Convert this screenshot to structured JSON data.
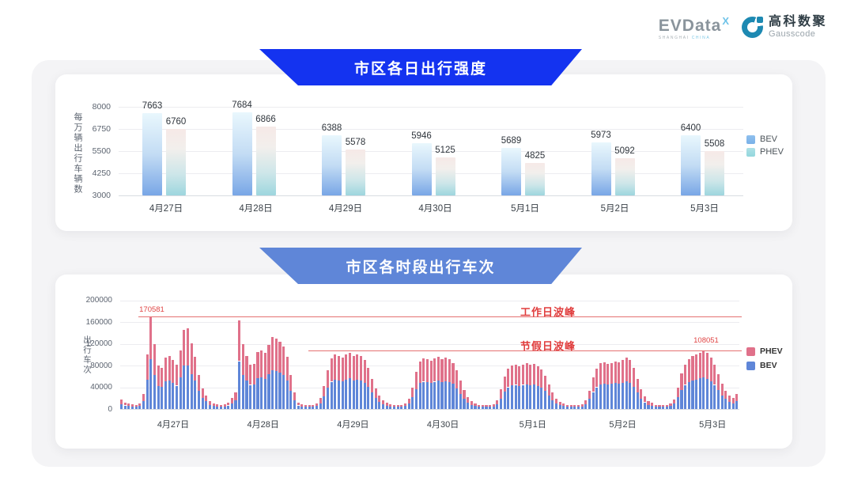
{
  "logo": {
    "evdata_text": "EVData",
    "evdata_sup": "X",
    "evdata_sub_left": "SHANGHAI",
    "evdata_sub_right": "CHINA",
    "gauss_cn": "高科数聚",
    "gauss_en": "Gausscode"
  },
  "banners": [
    {
      "title": "市区各日出行强度"
    },
    {
      "title": "市区各时段出行车次"
    }
  ],
  "colors": {
    "banner_blue": "#1433f0",
    "legend_bev_top": "#79b1e8",
    "legend_phev_top": "#93d7dd",
    "bev_bottom_chart": "#5f86d8",
    "phev_bottom_chart": "#e0718a",
    "annotation_red": "#e03c3c",
    "annotation_line_red": "#e57272"
  },
  "chart_data": [
    {
      "type": "bar",
      "title": "市区各日出行强度",
      "ylabel": "每万辆出行车辆数",
      "categories": [
        "4月27日",
        "4月28日",
        "4月29日",
        "4月30日",
        "5月1日",
        "5月2日",
        "5月3日"
      ],
      "series": [
        {
          "name": "BEV",
          "values": [
            7663,
            7684,
            6388,
            5946,
            5689,
            5973,
            6400
          ]
        },
        {
          "name": "PHEV",
          "values": [
            6760,
            6866,
            5578,
            5125,
            4825,
            5092,
            5508
          ]
        }
      ],
      "ylim": [
        3000,
        8000
      ],
      "yticks": [
        3000,
        4250,
        5500,
        6750,
        8000
      ],
      "grid": true,
      "legend_position": "right",
      "legend": [
        "BEV",
        "PHEV"
      ]
    },
    {
      "type": "bar",
      "stacked": true,
      "title": "市区各时段出行车次",
      "ylabel": "出行车次",
      "categories": [
        "4月27日",
        "4月28日",
        "4月29日",
        "4月30日",
        "5月1日",
        "5月2日",
        "5月3日"
      ],
      "hours_per_day": 24,
      "ylim": [
        0,
        200000
      ],
      "yticks": [
        0,
        40000,
        80000,
        120000,
        160000,
        200000
      ],
      "grid": true,
      "legend_position": "right",
      "legend": [
        "PHEV",
        "BEV"
      ],
      "annotations": {
        "workday_peak": {
          "label": "工作日波峰",
          "value": 170581,
          "value_label": "170581"
        },
        "holiday_peak": {
          "label": "节假日波峰",
          "value": 108051,
          "value_label": "108051"
        }
      },
      "series": [
        {
          "name": "BEV",
          "values": [
            9300,
            6600,
            5500,
            5000,
            4400,
            5500,
            15100,
            54000,
            91000,
            62000,
            42000,
            40300,
            51300,
            52400,
            48600,
            42900,
            58300,
            80000,
            80000,
            64100,
            51800,
            34100,
            20900,
            14000,
            7700,
            5500,
            5000,
            4400,
            5000,
            6600,
            10800,
            16200,
            88000,
            62000,
            52400,
            44300,
            44800,
            56700,
            57800,
            55600,
            63700,
            71800,
            70200,
            67000,
            62100,
            51800,
            33500,
            16500,
            6600,
            5000,
            4400,
            3900,
            4400,
            5500,
            10800,
            22700,
            38900,
            50200,
            54000,
            52400,
            51300,
            54000,
            56200,
            52900,
            54500,
            52400,
            48600,
            41000,
            30200,
            20500,
            13500,
            8800,
            6000,
            5000,
            4400,
            3900,
            4400,
            5500,
            10300,
            21600,
            36700,
            47500,
            50200,
            49100,
            48100,
            50200,
            51800,
            49700,
            50800,
            49100,
            45900,
            38300,
            28100,
            18900,
            11900,
            7600,
            5500,
            4400,
            3900,
            3900,
            4400,
            4900,
            8600,
            19400,
            32400,
            40000,
            43200,
            44300,
            42700,
            44300,
            45400,
            43700,
            44800,
            42700,
            39400,
            32900,
            24300,
            16200,
            10300,
            7000,
            5500,
            4400,
            3900,
            3900,
            4400,
            4900,
            8600,
            18400,
            31300,
            40000,
            45400,
            46400,
            44800,
            45900,
            47500,
            46400,
            48600,
            51300,
            48600,
            41000,
            30200,
            19400,
            12400,
            7600,
            5900,
            4300,
            3800,
            3800,
            4300,
            5400,
            9700,
            21600,
            35100,
            44300,
            49700,
            52900,
            54500,
            56200,
            58300,
            55600,
            51300,
            44300,
            34600,
            24800,
            18400,
            13500,
            10800,
            15100
          ]
        },
        {
          "name": "PHEV",
          "values": [
            7700,
            5400,
            4500,
            4000,
            3600,
            4500,
            12900,
            46000,
            79581,
            57000,
            38000,
            35700,
            43700,
            44600,
            41400,
            38100,
            49700,
            65000,
            68000,
            56900,
            44200,
            27900,
            17100,
            11000,
            6300,
            4500,
            4000,
            3600,
            4000,
            5400,
            9200,
            13800,
            75000,
            57000,
            44600,
            37700,
            38200,
            48300,
            49200,
            47400,
            54300,
            61200,
            59800,
            57000,
            52900,
            44200,
            28500,
            13500,
            5400,
            4000,
            3600,
            3100,
            3600,
            4500,
            9200,
            19300,
            33100,
            42800,
            46000,
            44600,
            43700,
            46000,
            47800,
            45100,
            46500,
            44600,
            41400,
            35000,
            25800,
            17500,
            11500,
            7200,
            5000,
            4000,
            3600,
            3100,
            3600,
            4500,
            8700,
            18400,
            31300,
            40500,
            42800,
            41900,
            40900,
            42800,
            44200,
            42300,
            43200,
            41900,
            39100,
            32700,
            23900,
            16100,
            10100,
            6400,
            4500,
            3600,
            3100,
            3100,
            3600,
            4100,
            7400,
            16600,
            27600,
            34000,
            36800,
            37700,
            36300,
            37700,
            38600,
            37300,
            38200,
            36300,
            33600,
            28100,
            20700,
            13800,
            8700,
            6000,
            4500,
            3600,
            3100,
            3100,
            3600,
            4100,
            7400,
            15600,
            26700,
            34000,
            38600,
            39600,
            38200,
            39100,
            40500,
            39600,
            41400,
            43700,
            41400,
            35000,
            25800,
            16600,
            10600,
            6400,
            5100,
            3700,
            3200,
            3200,
            3700,
            4600,
            8300,
            18400,
            29900,
            37700,
            42300,
            45100,
            46500,
            47800,
            49751,
            47400,
            43700,
            37700,
            29400,
            21200,
            15600,
            11500,
            9200,
            12900
          ]
        }
      ]
    }
  ]
}
